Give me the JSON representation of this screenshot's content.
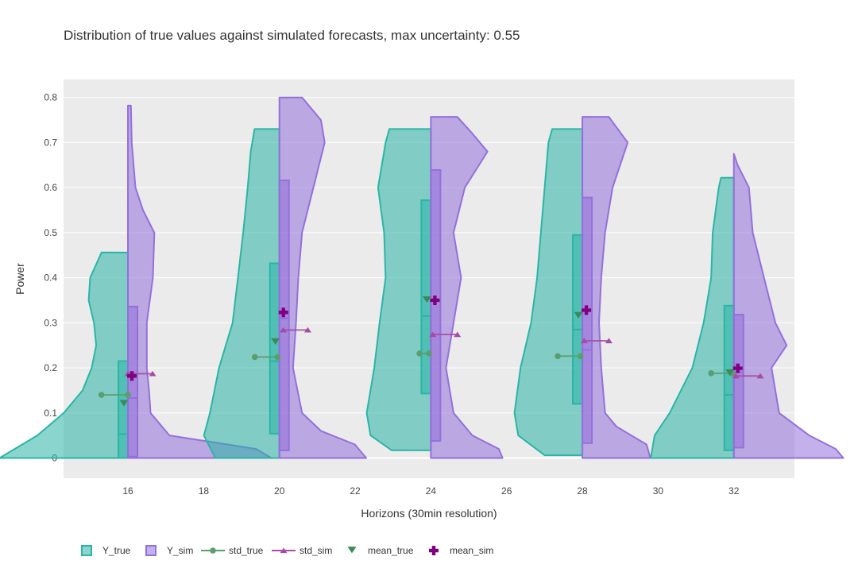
{
  "chart_data": {
    "type": "violin",
    "title": "Distribution of true values against simulated forecasts, max uncertainty: 0.55",
    "xlabel": "Horizons (30min resolution)",
    "ylabel": "Power",
    "xlim": [
      14.3,
      33.6
    ],
    "ylim": [
      -0.045,
      0.84
    ],
    "x_ticks": [
      16,
      18,
      20,
      22,
      24,
      26,
      28,
      30,
      32
    ],
    "y_ticks": [
      0,
      0.1,
      0.2,
      0.3,
      0.4,
      0.5,
      0.6,
      0.7,
      0.8
    ],
    "grid": true,
    "legend_position": "bottom-left, horizontal",
    "colors": {
      "Y_true": "#2ab5a5",
      "Y_sim": "#9370db",
      "std_true": "#5a9e6f",
      "std_sim": "#a64ca6",
      "mean_true": "#3a8a5a",
      "mean_sim": "#800080",
      "plot_bg": "#ebebeb"
    },
    "legend": [
      "Y_true",
      "Y_sim",
      "std_true",
      "std_sim",
      "mean_true",
      "mean_sim"
    ],
    "groups": [
      {
        "x": 16,
        "Y_true": {
          "min": 0,
          "q1": 0.0,
          "median": 0.053,
          "q3": 0.215,
          "max": 0.456,
          "profile": [
            [
              0,
              1.7
            ],
            [
              0.05,
              1.2
            ],
            [
              0.1,
              0.85
            ],
            [
              0.15,
              0.6
            ],
            [
              0.2,
              0.48
            ],
            [
              0.25,
              0.42
            ],
            [
              0.3,
              0.45
            ],
            [
              0.35,
              0.52
            ],
            [
              0.4,
              0.5
            ],
            [
              0.43,
              0.42
            ],
            [
              0.456,
              0.35
            ]
          ]
        },
        "Y_sim": {
          "min": 0,
          "q1": 0.003,
          "median": 0.133,
          "q3": 0.336,
          "max": 0.782,
          "profile": [
            [
              0,
              1.9
            ],
            [
              0.02,
              1.7
            ],
            [
              0.05,
              0.55
            ],
            [
              0.1,
              0.3
            ],
            [
              0.15,
              0.28
            ],
            [
              0.2,
              0.25
            ],
            [
              0.3,
              0.25
            ],
            [
              0.4,
              0.33
            ],
            [
              0.5,
              0.35
            ],
            [
              0.55,
              0.2
            ],
            [
              0.6,
              0.1
            ],
            [
              0.7,
              0.05
            ],
            [
              0.782,
              0.04
            ]
          ]
        },
        "mean_true": 0.122,
        "mean_sim": 0.182,
        "std_true": [
          15.3,
          16.0,
          0.14
        ],
        "std_sim": [
          16.0,
          16.65,
          0.187
        ]
      },
      {
        "x": 20,
        "Y_true": {
          "min": 0,
          "q1": 0.054,
          "median": 0.215,
          "q3": 0.432,
          "max": 0.73,
          "profile": [
            [
              0,
              0.85
            ],
            [
              0.05,
              1.0
            ],
            [
              0.1,
              0.92
            ],
            [
              0.2,
              0.8
            ],
            [
              0.3,
              0.62
            ],
            [
              0.4,
              0.55
            ],
            [
              0.5,
              0.48
            ],
            [
              0.6,
              0.42
            ],
            [
              0.68,
              0.38
            ],
            [
              0.73,
              0.33
            ]
          ]
        },
        "Y_sim": {
          "min": 0,
          "q1": 0.017,
          "median": 0.31,
          "q3": 0.616,
          "max": 0.8,
          "profile": [
            [
              0,
              1.15
            ],
            [
              0.03,
              1.0
            ],
            [
              0.06,
              0.55
            ],
            [
              0.1,
              0.3
            ],
            [
              0.2,
              0.18
            ],
            [
              0.3,
              0.22
            ],
            [
              0.4,
              0.25
            ],
            [
              0.5,
              0.3
            ],
            [
              0.6,
              0.45
            ],
            [
              0.7,
              0.6
            ],
            [
              0.75,
              0.55
            ],
            [
              0.8,
              0.3
            ]
          ]
        },
        "mean_true": 0.259,
        "mean_sim": 0.323,
        "std_true": [
          19.35,
          19.95,
          0.224
        ],
        "std_sim": [
          20.1,
          20.75,
          0.284
        ]
      },
      {
        "x": 24,
        "Y_true": {
          "min": 0.017,
          "q1": 0.143,
          "median": 0.315,
          "q3": 0.572,
          "max": 0.73,
          "profile": [
            [
              0.017,
              0.52
            ],
            [
              0.05,
              0.8
            ],
            [
              0.1,
              0.85
            ],
            [
              0.2,
              0.75
            ],
            [
              0.3,
              0.68
            ],
            [
              0.4,
              0.6
            ],
            [
              0.5,
              0.62
            ],
            [
              0.6,
              0.7
            ],
            [
              0.7,
              0.6
            ],
            [
              0.73,
              0.55
            ]
          ]
        },
        "Y_sim": {
          "min": 0,
          "q1": 0.038,
          "median": 0.35,
          "q3": 0.639,
          "max": 0.757,
          "profile": [
            [
              0,
              0.95
            ],
            [
              0.02,
              0.9
            ],
            [
              0.05,
              0.55
            ],
            [
              0.1,
              0.3
            ],
            [
              0.2,
              0.2
            ],
            [
              0.3,
              0.3
            ],
            [
              0.4,
              0.4
            ],
            [
              0.5,
              0.3
            ],
            [
              0.6,
              0.45
            ],
            [
              0.68,
              0.75
            ],
            [
              0.72,
              0.55
            ],
            [
              0.757,
              0.35
            ]
          ]
        },
        "mean_true": 0.352,
        "mean_sim": 0.35,
        "std_true": [
          23.7,
          23.95,
          0.232
        ],
        "std_sim": [
          24.05,
          24.7,
          0.274
        ]
      },
      {
        "x": 28,
        "Y_true": {
          "min": 0.006,
          "q1": 0.12,
          "median": 0.285,
          "q3": 0.495,
          "max": 0.73,
          "profile": [
            [
              0.006,
              0.5
            ],
            [
              0.05,
              0.85
            ],
            [
              0.1,
              0.9
            ],
            [
              0.2,
              0.82
            ],
            [
              0.3,
              0.68
            ],
            [
              0.4,
              0.6
            ],
            [
              0.5,
              0.55
            ],
            [
              0.6,
              0.5
            ],
            [
              0.7,
              0.45
            ],
            [
              0.73,
              0.4
            ]
          ]
        },
        "Y_sim": {
          "min": 0,
          "q1": 0.033,
          "median": 0.24,
          "q3": 0.578,
          "max": 0.757,
          "profile": [
            [
              0,
              0.9
            ],
            [
              0.03,
              0.85
            ],
            [
              0.07,
              0.45
            ],
            [
              0.1,
              0.3
            ],
            [
              0.2,
              0.25
            ],
            [
              0.3,
              0.22
            ],
            [
              0.4,
              0.25
            ],
            [
              0.5,
              0.3
            ],
            [
              0.6,
              0.4
            ],
            [
              0.7,
              0.6
            ],
            [
              0.757,
              0.35
            ]
          ]
        },
        "mean_true": 0.317,
        "mean_sim": 0.328,
        "std_true": [
          27.35,
          27.95,
          0.226
        ],
        "std_sim": [
          28.05,
          28.7,
          0.26
        ]
      },
      {
        "x": 32,
        "Y_true": {
          "min": 0,
          "q1": 0.017,
          "median": 0.14,
          "q3": 0.338,
          "max": 0.622,
          "profile": [
            [
              0,
              1.1
            ],
            [
              0.05,
              1.05
            ],
            [
              0.1,
              0.85
            ],
            [
              0.15,
              0.7
            ],
            [
              0.2,
              0.55
            ],
            [
              0.3,
              0.4
            ],
            [
              0.4,
              0.3
            ],
            [
              0.5,
              0.28
            ],
            [
              0.6,
              0.2
            ],
            [
              0.622,
              0.17
            ]
          ]
        },
        "Y_sim": {
          "min": 0,
          "q1": 0.023,
          "median": 0.19,
          "q3": 0.318,
          "max": 0.675,
          "profile": [
            [
              0,
              1.45
            ],
            [
              0.02,
              1.35
            ],
            [
              0.05,
              1.0
            ],
            [
              0.1,
              0.6
            ],
            [
              0.2,
              0.5
            ],
            [
              0.25,
              0.7
            ],
            [
              0.3,
              0.55
            ],
            [
              0.4,
              0.4
            ],
            [
              0.5,
              0.25
            ],
            [
              0.6,
              0.2
            ],
            [
              0.65,
              0.05
            ],
            [
              0.675,
              0.0
            ]
          ]
        },
        "mean_true": 0.19,
        "mean_sim": 0.199,
        "std_true": [
          31.4,
          31.95,
          0.188
        ],
        "std_sim": [
          32.05,
          32.7,
          0.182
        ]
      }
    ]
  }
}
